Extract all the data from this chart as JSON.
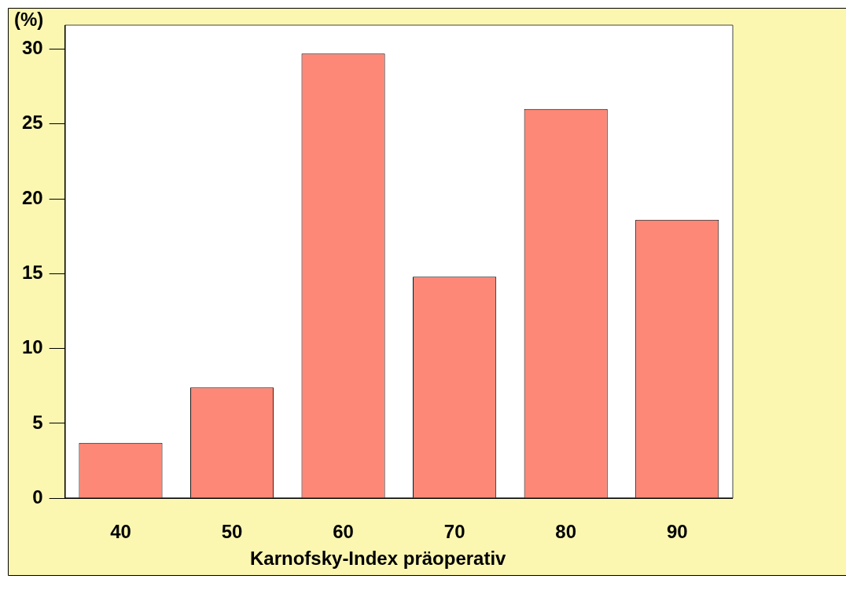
{
  "chart_data": {
    "type": "bar",
    "xlabel": "Karnofsky-Index präoperativ",
    "ylabel": "(%)",
    "categories": [
      "40",
      "50",
      "60",
      "70",
      "80",
      "90"
    ],
    "values": [
      3.7,
      7.4,
      29.7,
      14.8,
      26.0,
      18.6
    ],
    "color": "#fe8877",
    "ylim": [
      0,
      31.6
    ],
    "yticks": [
      0,
      5,
      10,
      15,
      20,
      25,
      30
    ],
    "grid": false,
    "legend": false
  }
}
